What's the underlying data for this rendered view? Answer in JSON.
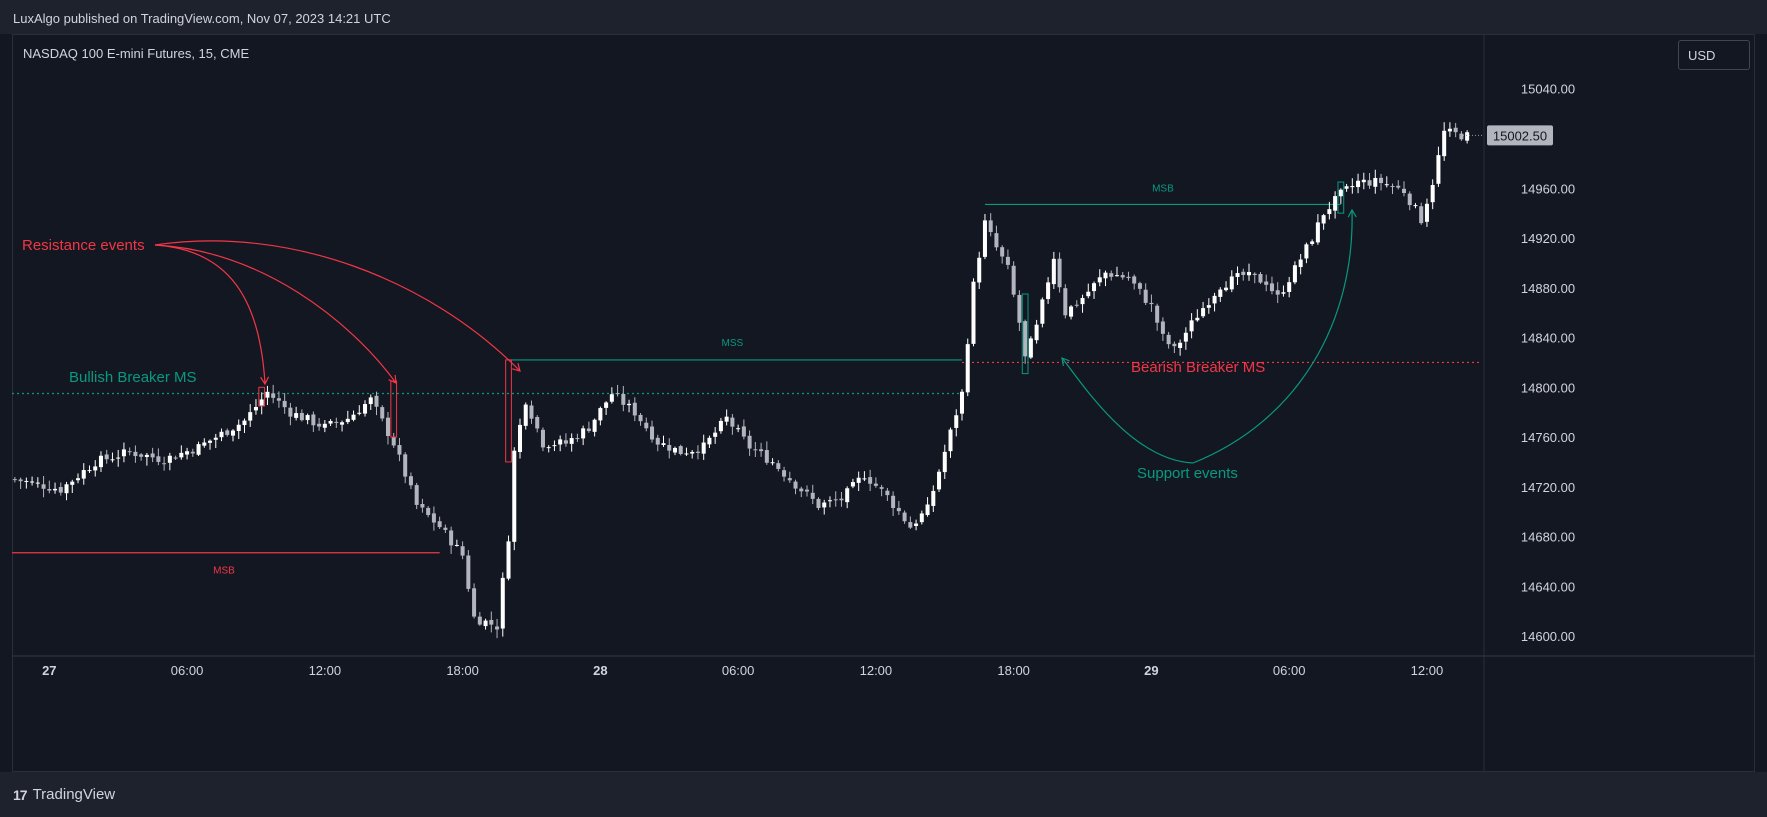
{
  "header": {
    "published_by": "LuxAlgo published on TradingView.com, Nov 07, 2023 14:21 UTC"
  },
  "footer": {
    "brand": "TradingView",
    "brand_mark": "17"
  },
  "chart_data": {
    "type": "candlestick",
    "title": "NASDAQ 100 E-mini Futures, 15, CME",
    "currency": "USD",
    "last_price": "15002.50",
    "y_ticks": [
      "15040.00",
      "14960.00",
      "14920.00",
      "14880.00",
      "14840.00",
      "14800.00",
      "14760.00",
      "14720.00",
      "14680.00",
      "14640.00",
      "14600.00"
    ],
    "y_tick_values": [
      15040,
      14960,
      14920,
      14880,
      14840,
      14800,
      14760,
      14720,
      14680,
      14640,
      14600
    ],
    "ylim": [
      14584,
      15084
    ],
    "x_ticks": [
      {
        "label": "27",
        "index": 6,
        "bold": true
      },
      {
        "label": "06:00",
        "index": 30,
        "bold": false
      },
      {
        "label": "12:00",
        "index": 54,
        "bold": false
      },
      {
        "label": "18:00",
        "index": 78,
        "bold": false
      },
      {
        "label": "28",
        "index": 102,
        "bold": true
      },
      {
        "label": "06:00",
        "index": 126,
        "bold": false
      },
      {
        "label": "12:00",
        "index": 150,
        "bold": false
      },
      {
        "label": "18:00",
        "index": 174,
        "bold": false
      },
      {
        "label": "29",
        "index": 198,
        "bold": true
      },
      {
        "label": "06:00",
        "index": 222,
        "bold": false
      },
      {
        "label": "12:00",
        "index": 246,
        "bold": false
      }
    ],
    "bar_count": 254,
    "close_path": [
      [
        0,
        14726
      ],
      [
        8,
        14718
      ],
      [
        14,
        14740
      ],
      [
        20,
        14748
      ],
      [
        26,
        14742
      ],
      [
        32,
        14752
      ],
      [
        40,
        14773
      ],
      [
        44,
        14796
      ],
      [
        48,
        14780
      ],
      [
        54,
        14768
      ],
      [
        58,
        14775
      ],
      [
        62,
        14790
      ],
      [
        66,
        14755
      ],
      [
        70,
        14705
      ],
      [
        74,
        14688
      ],
      [
        78,
        14665
      ],
      [
        80,
        14615
      ],
      [
        84,
        14608
      ],
      [
        86,
        14680
      ],
      [
        87,
        14748
      ],
      [
        89,
        14790
      ],
      [
        92,
        14755
      ],
      [
        96,
        14755
      ],
      [
        100,
        14768
      ],
      [
        104,
        14795
      ],
      [
        108,
        14780
      ],
      [
        112,
        14756
      ],
      [
        116,
        14748
      ],
      [
        120,
        14752
      ],
      [
        124,
        14775
      ],
      [
        128,
        14752
      ],
      [
        132,
        14740
      ],
      [
        136,
        14722
      ],
      [
        140,
        14705
      ],
      [
        144,
        14710
      ],
      [
        148,
        14730
      ],
      [
        152,
        14712
      ],
      [
        156,
        14688
      ],
      [
        159,
        14702
      ],
      [
        162,
        14748
      ],
      [
        165,
        14795
      ],
      [
        167,
        14882
      ],
      [
        169,
        14932
      ],
      [
        171,
        14912
      ],
      [
        173,
        14895
      ],
      [
        175,
        14852
      ],
      [
        176,
        14823
      ],
      [
        178,
        14848
      ],
      [
        181,
        14905
      ],
      [
        183,
        14860
      ],
      [
        186,
        14872
      ],
      [
        190,
        14892
      ],
      [
        194,
        14888
      ],
      [
        198,
        14865
      ],
      [
        200,
        14840
      ],
      [
        202,
        14830
      ],
      [
        206,
        14858
      ],
      [
        210,
        14882
      ],
      [
        214,
        14890
      ],
      [
        218,
        14885
      ],
      [
        220,
        14872
      ],
      [
        223,
        14895
      ],
      [
        226,
        14920
      ],
      [
        228,
        14940
      ],
      [
        231,
        14955
      ],
      [
        234,
        14965
      ],
      [
        238,
        14965
      ],
      [
        242,
        14958
      ],
      [
        245,
        14935
      ],
      [
        247,
        14965
      ],
      [
        249,
        15005
      ],
      [
        253,
        15002
      ]
    ],
    "annotations": {
      "resistance": "Resistance events",
      "support": "Support events",
      "bullish_breaker": "Bullish Breaker MS",
      "bearish_breaker": "Bearish Breaker MS",
      "msb_left": "MSB",
      "mss": "MSS",
      "msb_right": "MSB"
    },
    "levels": {
      "bullish_breaker": 14795,
      "bearish_breaker": 14820,
      "msb_left": 14667,
      "mss": 14822,
      "msb_right": 14947
    },
    "colors": {
      "background": "#131722",
      "up": "#ffffff",
      "down": "#b2b5be",
      "bullish": "#089981",
      "bearish": "#f23645",
      "grid": "#2a2e39"
    }
  }
}
